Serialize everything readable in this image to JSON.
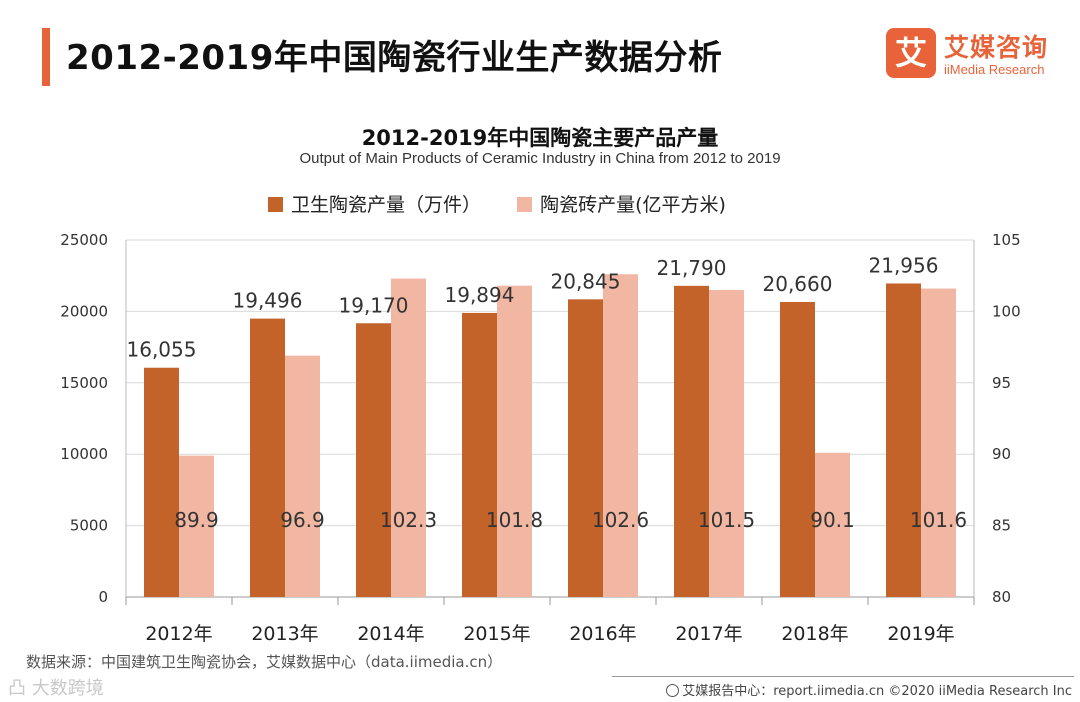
{
  "page": {
    "title": "2012-2019年中国陶瓷行业生产数据分析"
  },
  "brand": {
    "mark": "艾",
    "name_cn": "艾媒咨询",
    "name_en": "iiMedia Research",
    "accent_color": "#e8633a"
  },
  "chart_data": {
    "type": "bar",
    "title": "2012-2019年中国陶瓷主要产品产量",
    "subtitle": "Output of Main Products of Ceramic Industry in China from 2012 to 2019",
    "categories": [
      "2012年",
      "2013年",
      "2014年",
      "2015年",
      "2016年",
      "2017年",
      "2018年",
      "2019年"
    ],
    "series": [
      {
        "name": "卫生陶瓷产量（万件）",
        "axis": "left",
        "color": "#c3632a",
        "values": [
          16055,
          19496,
          19170,
          19894,
          20845,
          21790,
          20660,
          21956
        ],
        "labels": [
          "16,055",
          "19,496",
          "19,170",
          "19,894",
          "20,845",
          "21,790",
          "20,660",
          "21,956"
        ]
      },
      {
        "name": "陶瓷砖产量(亿平方米)",
        "axis": "right",
        "color": "#f2b7a2",
        "values": [
          89.9,
          96.9,
          102.3,
          101.8,
          102.6,
          101.5,
          90.1,
          101.6
        ],
        "labels": [
          "89.9",
          "96.9",
          "102.3",
          "101.8",
          "102.6",
          "101.5",
          "90.1",
          "101.6"
        ]
      }
    ],
    "left_axis": {
      "min": 0,
      "max": 25000,
      "ticks": [
        0,
        5000,
        10000,
        15000,
        20000,
        25000
      ]
    },
    "right_axis": {
      "min": 80,
      "max": 105,
      "ticks": [
        80,
        85,
        90,
        95,
        100,
        105
      ]
    },
    "grid": true,
    "legend": "top-center"
  },
  "source": "数据来源：中国建筑卫生陶瓷协会，艾媒数据中心（data.iimedia.cn）",
  "watermark": "凸 大数跨境",
  "footer": "艾媒报告中心：report.iimedia.cn  ©2020  iiMedia Research  Inc"
}
